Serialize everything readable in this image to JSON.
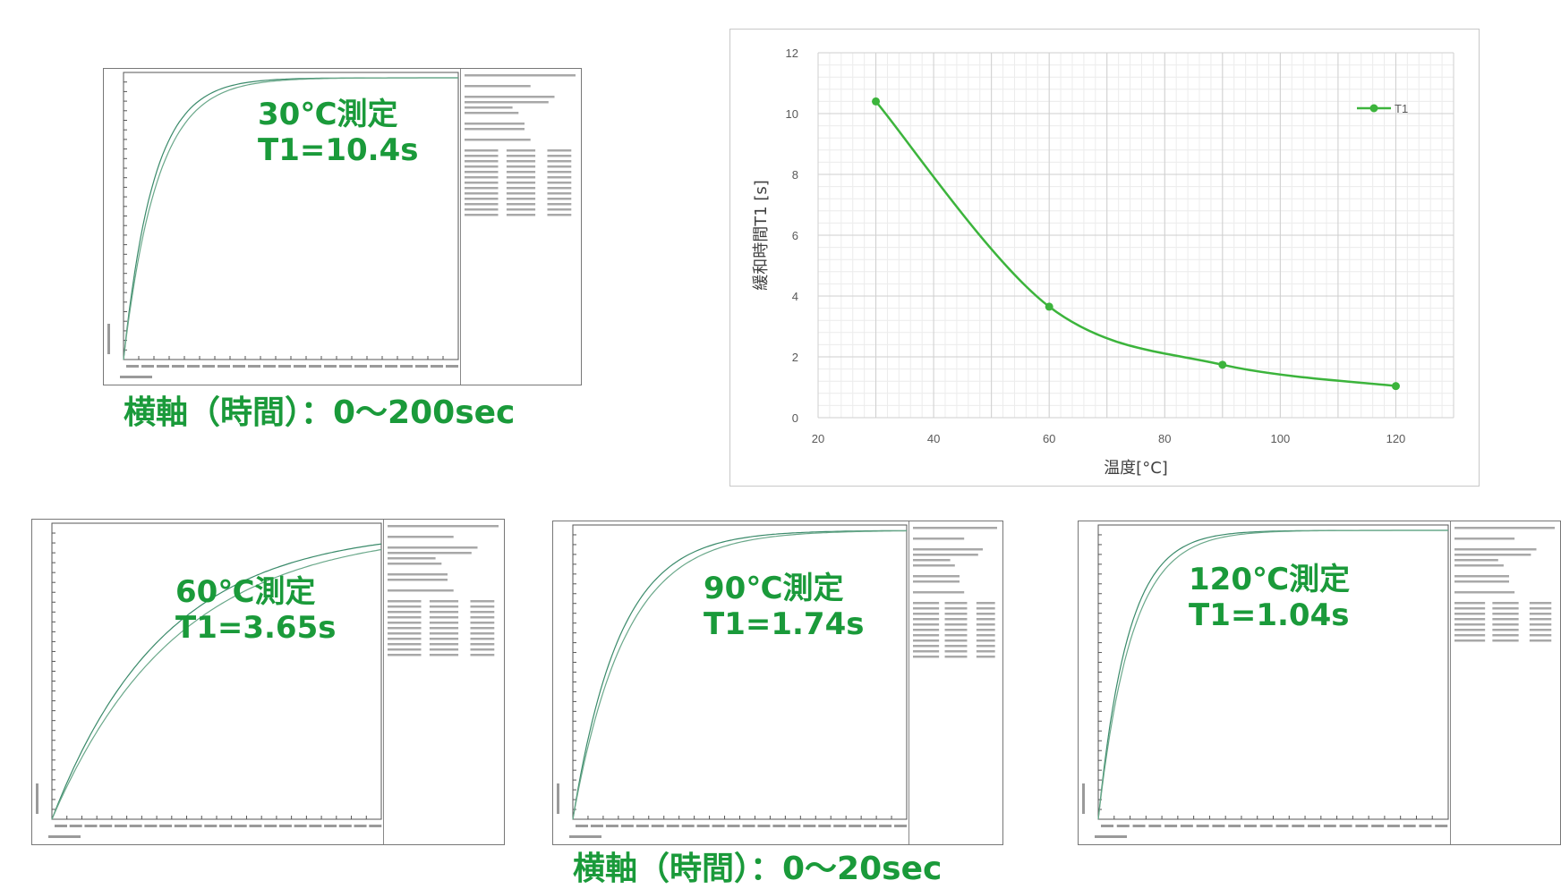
{
  "captions": {
    "c30": {
      "line1": "30℃測定",
      "line2": "T1=10.4s"
    },
    "c60": {
      "line1": "60℃測定",
      "line2": "T1=3.65s"
    },
    "c90": {
      "line1": "90℃測定",
      "line2": "T1=1.74s"
    },
    "c120": {
      "line1": "120℃測定",
      "line2": "T1=1.04s"
    }
  },
  "axis_notes": {
    "top": "横軸（時間）：0～200sec",
    "bottom": "横軸（時間）：0～20sec"
  },
  "colors": {
    "accent": "#1a9a3a",
    "line": "#3cb43c",
    "recovery": "#3a8a6a"
  },
  "chart_data": {
    "type": "line",
    "title": "",
    "xlabel": "温度[°C]",
    "ylabel": "緩和時間T1 [s]",
    "x": [
      30,
      60,
      90,
      120
    ],
    "series": [
      {
        "name": "T1",
        "values": [
          10.4,
          3.65,
          1.74,
          1.04
        ]
      }
    ],
    "xlim": [
      20,
      130
    ],
    "ylim": [
      0,
      12
    ],
    "xticks": [
      "20",
      "40",
      "60",
      "80",
      "100",
      "120"
    ],
    "yticks": [
      "0",
      "2",
      "4",
      "6",
      "8",
      "10",
      "12"
    ],
    "grid": true,
    "smooth": true,
    "legend": "top-right"
  }
}
